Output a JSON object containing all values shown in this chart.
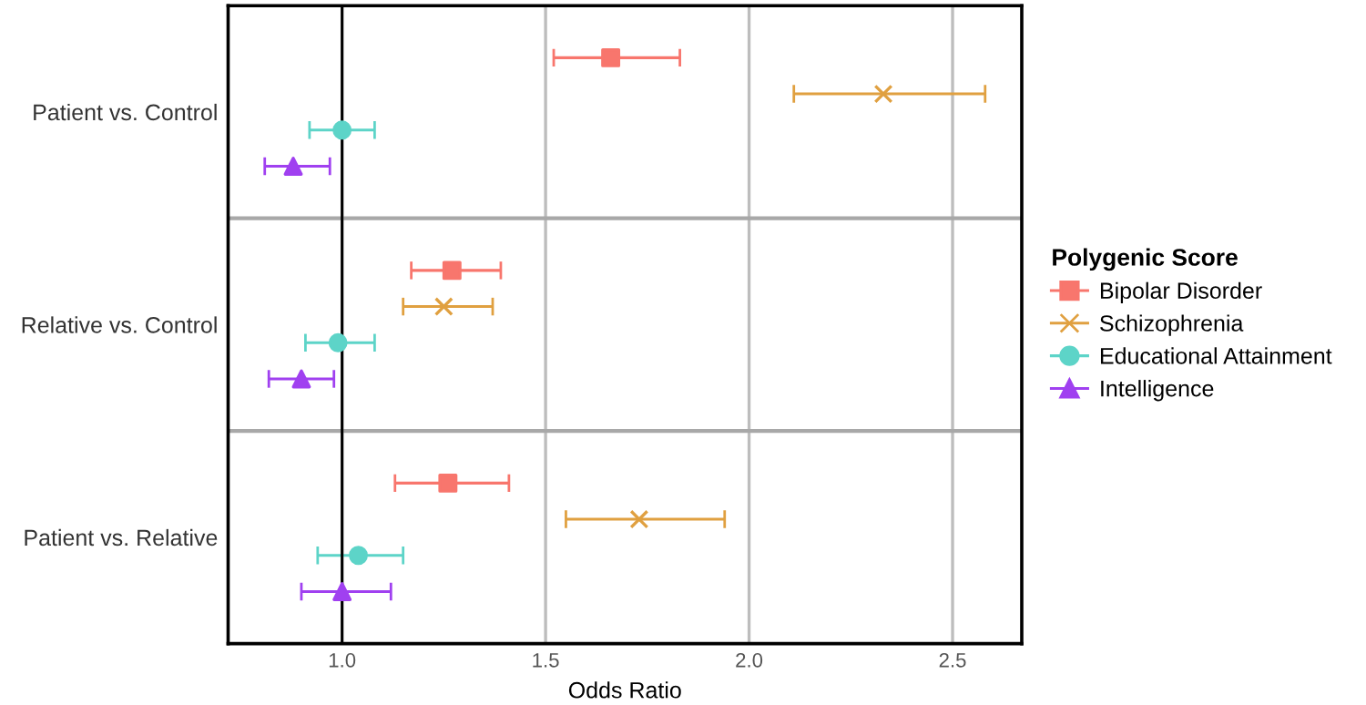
{
  "chart_data": {
    "type": "scatter",
    "orientation": "horizontal",
    "categories": [
      "Patient vs. Control",
      "Relative vs. Control",
      "Patient vs. Relative"
    ],
    "xlabel": "Odds Ratio",
    "legend_title": "Polygenic Score",
    "legend": "right",
    "grid": "x",
    "xlim": [
      0.72,
      2.67
    ],
    "xticks": [
      {
        "value": 1.0,
        "label": "1.0"
      },
      {
        "value": 1.5,
        "label": "1.5"
      },
      {
        "value": 2.0,
        "label": "2.0"
      },
      {
        "value": 2.5,
        "label": "2.5"
      }
    ],
    "ref_lines": [
      {
        "axis": "x",
        "value": 1.0,
        "color": "#000000"
      }
    ],
    "series": [
      {
        "name": "Bipolar Disorder",
        "color": "#f8766d",
        "marker": "square",
        "values": [
          1.66,
          1.27,
          1.26
        ],
        "errors": [
          [
            1.52,
            1.83
          ],
          [
            1.17,
            1.39
          ],
          [
            1.13,
            1.41
          ]
        ]
      },
      {
        "name": "Schizophrenia",
        "color": "#e0a040",
        "marker": "cross",
        "values": [
          2.33,
          1.25,
          1.73
        ],
        "errors": [
          [
            2.11,
            2.58
          ],
          [
            1.15,
            1.37
          ],
          [
            1.55,
            1.94
          ]
        ]
      },
      {
        "name": "Educational Attainment",
        "color": "#5dd4c8",
        "marker": "circle",
        "values": [
          1.0,
          0.99,
          1.04
        ],
        "errors": [
          [
            0.92,
            1.08
          ],
          [
            0.91,
            1.08
          ],
          [
            0.94,
            1.15
          ]
        ]
      },
      {
        "name": "Intelligence",
        "color": "#a040f0",
        "marker": "triangle",
        "values": [
          0.88,
          0.9,
          1.0
        ],
        "errors": [
          [
            0.81,
            0.97
          ],
          [
            0.82,
            0.98
          ],
          [
            0.9,
            1.12
          ]
        ]
      }
    ]
  }
}
